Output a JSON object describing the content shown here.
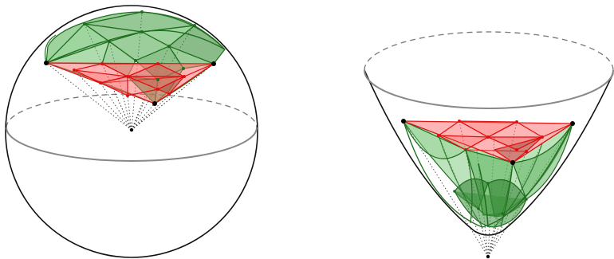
{
  "figures": [
    {
      "id": "sphere",
      "solid": "sphere",
      "triangle_subdivision": 3,
      "projection_center": "sphere-center"
    },
    {
      "id": "paraboloid",
      "solid": "paraboloid",
      "triangle_subdivision": 3,
      "projection_center": "point-below-vertex"
    }
  ],
  "colors": {
    "outline": "#111111",
    "hidden_outline": "#777777",
    "equator": "#888888",
    "projected_fill": "#4fae4f",
    "projected_stroke": "#1f6f1f",
    "flat_fill": "#ff6b6b",
    "flat_stroke": "#e01010",
    "flat_dark": "#a05040",
    "rays": "#444444",
    "vertex_points": "#000000"
  }
}
